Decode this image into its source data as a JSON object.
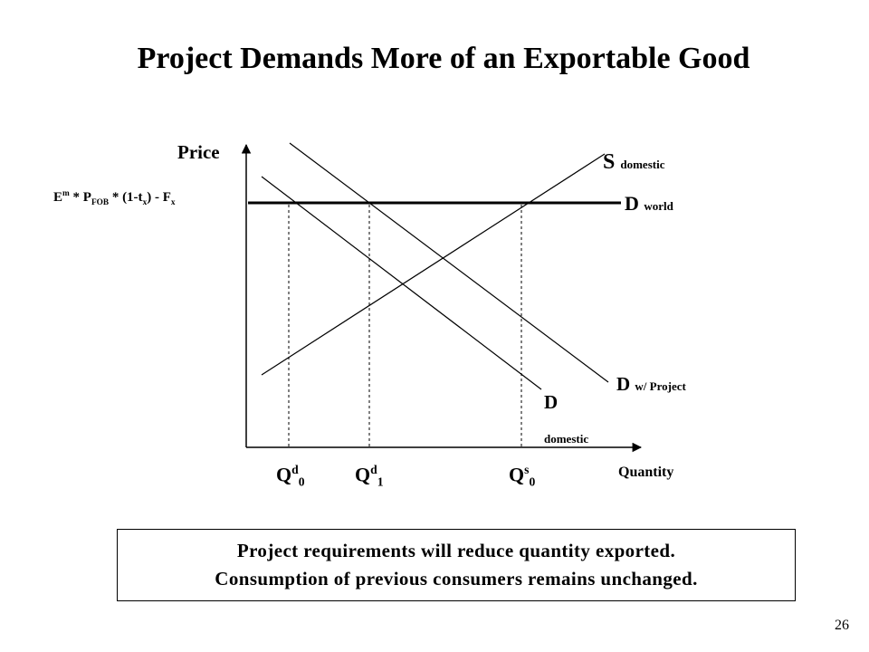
{
  "title": "Project Demands More of an Exportable Good",
  "axes": {
    "y_label": "Price",
    "x_label": "Quantity"
  },
  "price_level": {
    "e": "E",
    "e_sup": "m",
    "times1": " * ",
    "p": "P",
    "p_sub": "FOB",
    "mid": " * (1-t",
    "t_sub": "x",
    "end": ") - F",
    "f_sub": "x"
  },
  "curves": {
    "s_domestic": {
      "main": "S",
      "sub": "domestic"
    },
    "d_world": {
      "main": "D",
      "sub": "world"
    },
    "d_project": {
      "main": "D",
      "sub": "w/ Project"
    },
    "d_domestic": {
      "main": "D",
      "sub": "domestic"
    }
  },
  "quantities": [
    {
      "main": "Q",
      "sup": "d",
      "sub": "0"
    },
    {
      "main": "Q",
      "sup": "d",
      "sub": "1"
    },
    {
      "main": "Q",
      "sup": "s",
      "sub": "0"
    }
  ],
  "note": {
    "line1": "Project requirements will reduce quantity exported.",
    "line2": "Consumption of previous consumers remains unchanged."
  },
  "page_number": "26"
}
